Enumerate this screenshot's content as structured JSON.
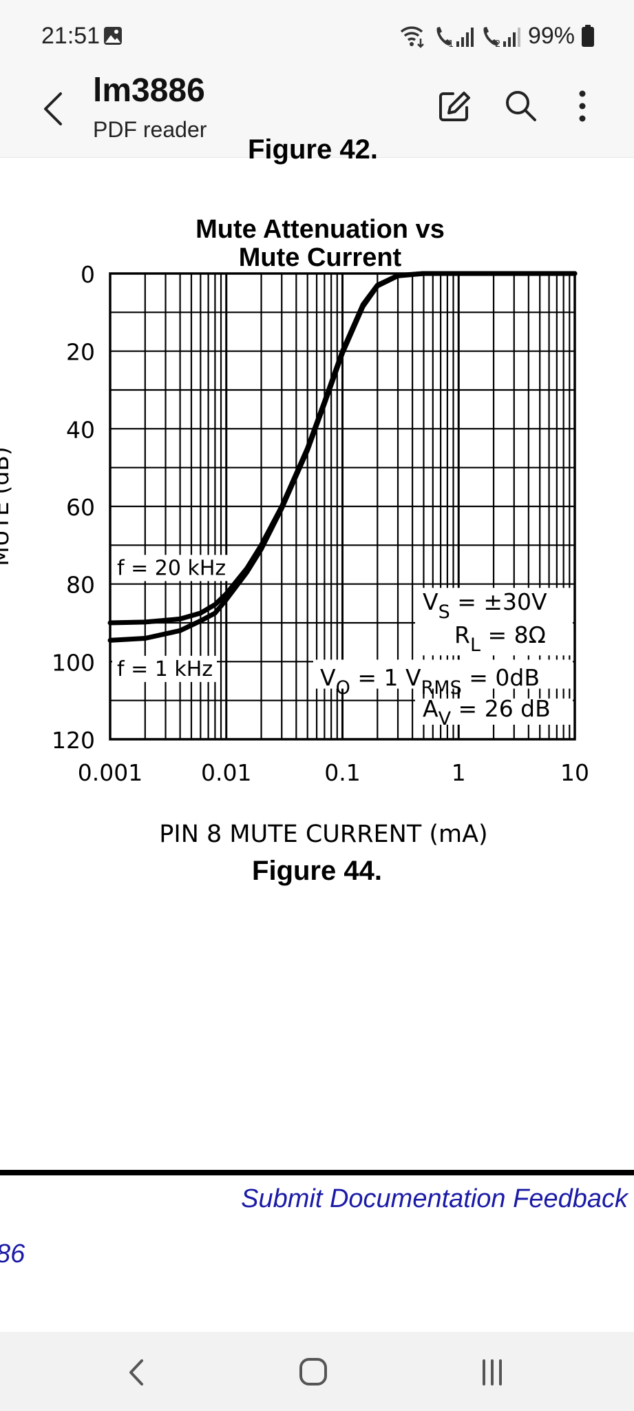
{
  "status_bar": {
    "time": "21:51",
    "battery": "99%",
    "icons": [
      "image-icon",
      "wifi-call-icon",
      "sim1-signal-icon",
      "sim2-signal-icon",
      "battery-icon"
    ],
    "sim1_label": "1",
    "sim2_label": "2"
  },
  "app_bar": {
    "title": "lm3886",
    "subtitle": "PDF reader",
    "icons": [
      "back-icon",
      "edit-icon",
      "search-icon",
      "more-icon"
    ]
  },
  "document": {
    "previous_figure_caption": "Figure 42.",
    "figure_caption": "Figure 44.",
    "feedback_link": "Submit Documentation Feedback",
    "page_code": "86"
  },
  "chart_data": {
    "type": "line",
    "title_line1": "Mute Attenuation vs",
    "title_line2": "Mute Current",
    "ylabel": "MUTE (dB)",
    "xlabel": "PIN 8 MUTE CURRENT (mA)",
    "x_scale": "log",
    "xlim": [
      0.001,
      10
    ],
    "ylim": [
      0,
      120
    ],
    "y_inverted": true,
    "grid": true,
    "x_ticks": [
      "0.001",
      "0.01",
      "0.1",
      "1",
      "10"
    ],
    "x_tick_values": [
      0.001,
      0.01,
      0.1,
      1,
      10
    ],
    "y_ticks": [
      "0",
      "20",
      "40",
      "60",
      "80",
      "100",
      "120"
    ],
    "y_tick_values": [
      0,
      20,
      40,
      60,
      80,
      100,
      120
    ],
    "series": [
      {
        "name": "f = 20 kHz",
        "x": [
          0.001,
          0.002,
          0.004,
          0.006,
          0.008,
          0.01,
          0.015,
          0.02,
          0.03,
          0.05,
          0.07,
          0.1,
          0.15,
          0.2,
          0.3,
          0.5,
          1,
          10
        ],
        "y": [
          90,
          89.8,
          89,
          87.5,
          85.3,
          82.5,
          76,
          70,
          60,
          45,
          33,
          20,
          8,
          3,
          0.5,
          0,
          0,
          0
        ]
      },
      {
        "name": "f = 1 kHz",
        "x": [
          0.001,
          0.002,
          0.004,
          0.006,
          0.008,
          0.01,
          0.015,
          0.02,
          0.03,
          0.05,
          0.07,
          0.1,
          0.15,
          0.2,
          0.3,
          0.5,
          1,
          10
        ],
        "y": [
          94.5,
          94,
          92,
          89.5,
          87.5,
          84,
          77,
          71,
          60.5,
          45.5,
          33.5,
          20.5,
          8.5,
          3.2,
          0.6,
          0,
          0,
          0
        ]
      }
    ],
    "conditions": [
      {
        "sym": "V",
        "sub": "S",
        "eq": "=",
        "val": "±30V"
      },
      {
        "sym": "R",
        "sub": "L",
        "eq": "=",
        "val": "8Ω"
      },
      {
        "sym": "V",
        "sub": "O",
        "eq": "=",
        "val": "1 V",
        "val_sub": "RMS",
        "val_tail": " = 0dB"
      },
      {
        "sym": "A",
        "sub": "V",
        "eq": "=",
        "val": "26 dB"
      }
    ]
  },
  "nav_bar": {
    "icons": [
      "nav-back-icon",
      "nav-home-icon",
      "nav-recents-icon"
    ]
  }
}
